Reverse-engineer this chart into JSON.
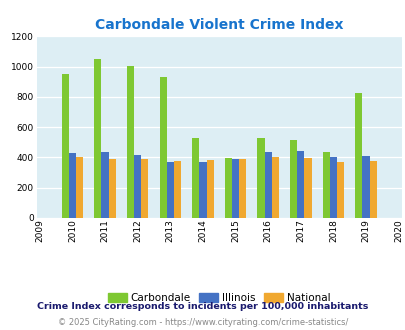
{
  "title": "Carbondale Violent Crime Index",
  "all_years": [
    2009,
    2010,
    2011,
    2012,
    2013,
    2014,
    2015,
    2016,
    2017,
    2018,
    2019,
    2020
  ],
  "data_years": [
    2010,
    2011,
    2012,
    2013,
    2014,
    2015,
    2016,
    2017,
    2018,
    2019
  ],
  "carbondale": [
    950,
    1050,
    1005,
    930,
    525,
    395,
    525,
    515,
    435,
    825
  ],
  "illinois": [
    430,
    432,
    415,
    372,
    372,
    388,
    432,
    442,
    400,
    407
  ],
  "national": [
    403,
    390,
    390,
    375,
    383,
    391,
    400,
    398,
    372,
    378
  ],
  "carbondale_color": "#7ec832",
  "illinois_color": "#4472c4",
  "national_color": "#f0a830",
  "bg_color": "#ddeef4",
  "title_color": "#1874cd",
  "ylim": [
    0,
    1200
  ],
  "yticks": [
    0,
    200,
    400,
    600,
    800,
    1000,
    1200
  ],
  "subtitle": "Crime Index corresponds to incidents per 100,000 inhabitants",
  "footer": "© 2025 CityRating.com - https://www.cityrating.com/crime-statistics/",
  "legend_labels": [
    "Carbondale",
    "Illinois",
    "National"
  ],
  "bar_width": 0.22
}
